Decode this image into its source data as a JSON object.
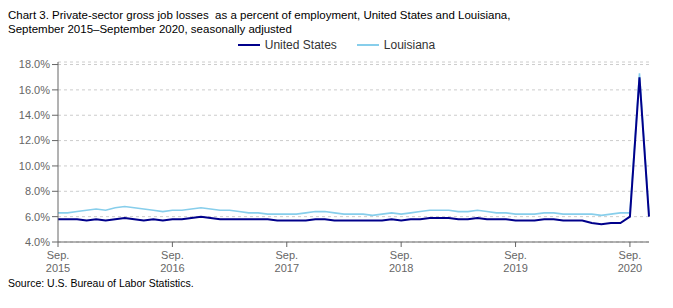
{
  "chart_data": {
    "type": "line",
    "title": "Chart 3. Private-sector gross job losses  as a percent of employment, United States and Louisiana,",
    "subtitle": "September 2015–September 2020, seasonally adjusted",
    "annotations": [
      "Source: U.S. Bureau of Labor Statistics."
    ],
    "categories": [
      "Sep.\n2015",
      null,
      null,
      null,
      null,
      null,
      null,
      null,
      null,
      null,
      null,
      null,
      "Sep.\n2016",
      null,
      null,
      null,
      null,
      null,
      null,
      null,
      null,
      null,
      null,
      null,
      "Sep.\n2017",
      null,
      null,
      null,
      null,
      null,
      null,
      null,
      null,
      null,
      null,
      null,
      "Sep.\n2018",
      null,
      null,
      null,
      null,
      null,
      null,
      null,
      null,
      null,
      null,
      null,
      "Sep.\n2019",
      null,
      null,
      null,
      null,
      null,
      null,
      null,
      null,
      null,
      null,
      null,
      "Sep.\n2020",
      null,
      null
    ],
    "series": [
      {
        "name": "United States",
        "color": "#00008B",
        "values": [
          0.058,
          0.058,
          0.058,
          0.057,
          0.058,
          0.057,
          0.058,
          0.059,
          0.058,
          0.057,
          0.058,
          0.057,
          0.058,
          0.058,
          0.059,
          0.06,
          0.059,
          0.058,
          0.058,
          0.058,
          0.058,
          0.058,
          0.058,
          0.057,
          0.057,
          0.057,
          0.057,
          0.058,
          0.058,
          0.057,
          0.057,
          0.057,
          0.057,
          0.057,
          0.057,
          0.058,
          0.057,
          0.058,
          0.058,
          0.059,
          0.059,
          0.059,
          0.058,
          0.058,
          0.059,
          0.058,
          0.058,
          0.058,
          0.057,
          0.057,
          0.057,
          0.058,
          0.058,
          0.057,
          0.057,
          0.057,
          0.055,
          0.054,
          0.055,
          0.055,
          0.06,
          0.17,
          0.06
        ]
      },
      {
        "name": "Louisiana",
        "color": "#87CEEB",
        "values": [
          0.063,
          0.063,
          0.064,
          0.065,
          0.066,
          0.065,
          0.067,
          0.068,
          0.067,
          0.066,
          0.065,
          0.064,
          0.065,
          0.065,
          0.066,
          0.067,
          0.066,
          0.065,
          0.065,
          0.064,
          0.063,
          0.063,
          0.062,
          0.062,
          0.062,
          0.062,
          0.063,
          0.064,
          0.064,
          0.063,
          0.062,
          0.062,
          0.062,
          0.061,
          0.062,
          0.063,
          0.062,
          0.063,
          0.064,
          0.065,
          0.065,
          0.065,
          0.064,
          0.064,
          0.065,
          0.064,
          0.063,
          0.063,
          0.062,
          0.062,
          0.062,
          0.063,
          0.063,
          0.062,
          0.062,
          0.062,
          0.062,
          0.061,
          0.062,
          0.063,
          0.063,
          0.173,
          0.062
        ]
      }
    ],
    "ylim": [
      0.04,
      0.182
    ],
    "yticks": [
      {
        "value": 0.04,
        "label": "4.0%"
      },
      {
        "value": 0.06,
        "label": "6.0%"
      },
      {
        "value": 0.08,
        "label": "8.0%"
      },
      {
        "value": 0.1,
        "label": "10.0%"
      },
      {
        "value": 0.12,
        "label": "12.0%"
      },
      {
        "value": 0.14,
        "label": "14.0%"
      },
      {
        "value": 0.16,
        "label": "16.0%"
      },
      {
        "value": 0.18,
        "label": "18.0%"
      }
    ],
    "grid": true,
    "legend": "top"
  }
}
